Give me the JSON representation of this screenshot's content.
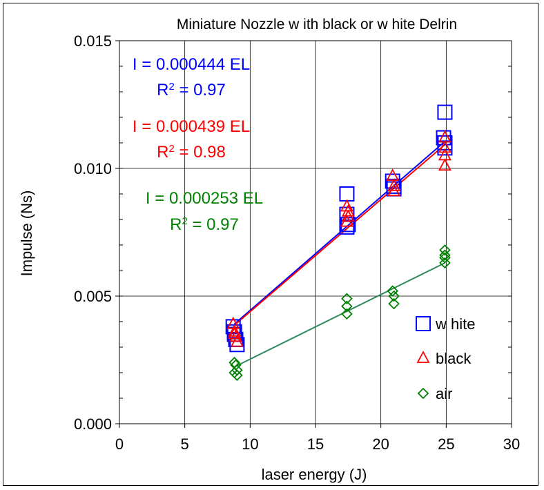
{
  "chart_data": {
    "type": "scatter",
    "title": "Miniature Nozzle w ith black or w hite Delrin",
    "xlabel": "laser energy (J)",
    "ylabel": "Impulse (Ns)",
    "xlim": [
      0,
      30
    ],
    "ylim": [
      0,
      0.015
    ],
    "xticks": [
      "0",
      "5",
      "10",
      "15",
      "20",
      "25",
      "30"
    ],
    "yticks": [
      "0.000",
      "0.005",
      "0.010",
      "0.015"
    ],
    "grid": true,
    "legend_position": "bottom-right",
    "series": [
      {
        "name": "w hite",
        "marker": "square",
        "color": "#0000ff",
        "points": [
          [
            8.7,
            0.0038
          ],
          [
            8.8,
            0.0035
          ],
          [
            8.9,
            0.0033
          ],
          [
            9.0,
            0.0031
          ],
          [
            8.8,
            0.0036
          ],
          [
            17.4,
            0.009
          ],
          [
            17.4,
            0.0082
          ],
          [
            17.5,
            0.0078
          ],
          [
            17.4,
            0.0077
          ],
          [
            20.9,
            0.0095
          ],
          [
            21.0,
            0.0093
          ],
          [
            21.0,
            0.0092
          ],
          [
            24.9,
            0.0122
          ],
          [
            24.9,
            0.011
          ],
          [
            24.9,
            0.0108
          ],
          [
            24.8,
            0.0112
          ]
        ],
        "fit": {
          "slope": 0.000444,
          "r2": 0.97,
          "x_range": [
            8.8,
            24.9
          ]
        }
      },
      {
        "name": "black",
        "marker": "triangle",
        "color": "#ff0000",
        "points": [
          [
            8.7,
            0.0039
          ],
          [
            8.8,
            0.0036
          ],
          [
            8.9,
            0.0034
          ],
          [
            9.0,
            0.0032
          ],
          [
            8.8,
            0.0035
          ],
          [
            17.4,
            0.0085
          ],
          [
            17.5,
            0.0081
          ],
          [
            17.4,
            0.0079
          ],
          [
            17.5,
            0.0083
          ],
          [
            20.9,
            0.0097
          ],
          [
            21.0,
            0.0093
          ],
          [
            21.0,
            0.0091
          ],
          [
            24.9,
            0.0112
          ],
          [
            24.9,
            0.0108
          ],
          [
            24.9,
            0.0105
          ],
          [
            24.9,
            0.0101
          ]
        ],
        "fit": {
          "slope": 0.000439,
          "r2": 0.98,
          "x_range": [
            8.8,
            24.9
          ]
        }
      },
      {
        "name": "air",
        "marker": "diamond",
        "color": "#008000",
        "points": [
          [
            8.8,
            0.0024
          ],
          [
            8.9,
            0.0023
          ],
          [
            9.0,
            0.0021
          ],
          [
            9.0,
            0.0019
          ],
          [
            8.8,
            0.002
          ],
          [
            17.4,
            0.0049
          ],
          [
            17.4,
            0.0046
          ],
          [
            17.4,
            0.0043
          ],
          [
            20.9,
            0.0052
          ],
          [
            21.0,
            0.005
          ],
          [
            21.0,
            0.0047
          ],
          [
            24.9,
            0.0068
          ],
          [
            24.9,
            0.0066
          ],
          [
            24.9,
            0.0065
          ],
          [
            24.9,
            0.0063
          ]
        ],
        "fit": {
          "slope": 0.000253,
          "r2": 0.97,
          "x_range": [
            9.0,
            24.9
          ],
          "line_color": "#2e8b57"
        }
      }
    ],
    "annotations": [
      {
        "line1": "I = 0.000444 EL",
        "line2": "R",
        "sup": "2",
        "line2_tail": " = 0.97",
        "color": "#0000ff"
      },
      {
        "line1": "I = 0.000439 EL",
        "line2": "R",
        "sup": "2",
        "line2_tail": " = 0.98",
        "color": "#ff0000"
      },
      {
        "line1": "I = 0.000253 EL",
        "line2": "R",
        "sup": "2",
        "line2_tail": " = 0.97",
        "color": "#008000"
      }
    ]
  }
}
